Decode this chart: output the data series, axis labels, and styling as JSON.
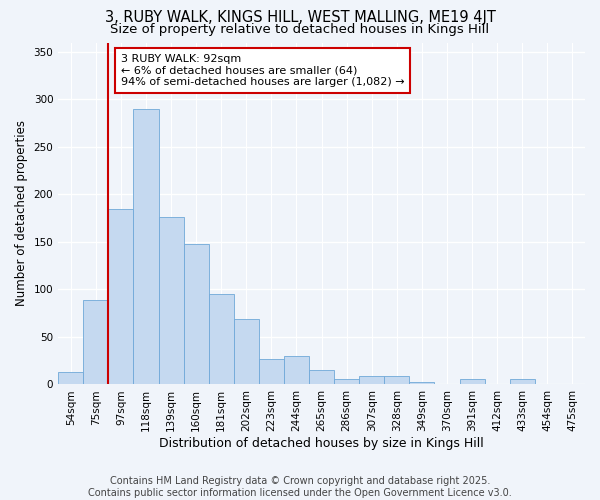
{
  "title_line1": "3, RUBY WALK, KINGS HILL, WEST MALLING, ME19 4JT",
  "title_line2": "Size of property relative to detached houses in Kings Hill",
  "xlabel": "Distribution of detached houses by size in Kings Hill",
  "ylabel": "Number of detached properties",
  "categories": [
    "54sqm",
    "75sqm",
    "97sqm",
    "118sqm",
    "139sqm",
    "160sqm",
    "181sqm",
    "202sqm",
    "223sqm",
    "244sqm",
    "265sqm",
    "286sqm",
    "307sqm",
    "328sqm",
    "349sqm",
    "370sqm",
    "391sqm",
    "412sqm",
    "433sqm",
    "454sqm",
    "475sqm"
  ],
  "values": [
    13,
    89,
    185,
    290,
    176,
    148,
    95,
    69,
    27,
    30,
    15,
    6,
    9,
    9,
    3,
    0,
    6,
    0,
    6,
    0,
    0
  ],
  "bar_color": "#c5d9f0",
  "bar_edgecolor": "#6fa8d8",
  "vline_x": 2.0,
  "vline_color": "#cc0000",
  "ylim": [
    0,
    360
  ],
  "yticks": [
    0,
    50,
    100,
    150,
    200,
    250,
    300,
    350
  ],
  "annotation_text": "3 RUBY WALK: 92sqm\n← 6% of detached houses are smaller (64)\n94% of semi-detached houses are larger (1,082) →",
  "annotation_box_facecolor": "#ffffff",
  "annotation_box_edgecolor": "#cc0000",
  "footer_text": "Contains HM Land Registry data © Crown copyright and database right 2025.\nContains public sector information licensed under the Open Government Licence v3.0.",
  "background_color": "#f0f4fa",
  "plot_bg_color": "#f0f4fa",
  "grid_color": "#ffffff",
  "title_fontsize": 10.5,
  "subtitle_fontsize": 9.5,
  "ylabel_fontsize": 8.5,
  "xlabel_fontsize": 9,
  "tick_fontsize": 7.5,
  "annotation_fontsize": 8,
  "footer_fontsize": 7
}
